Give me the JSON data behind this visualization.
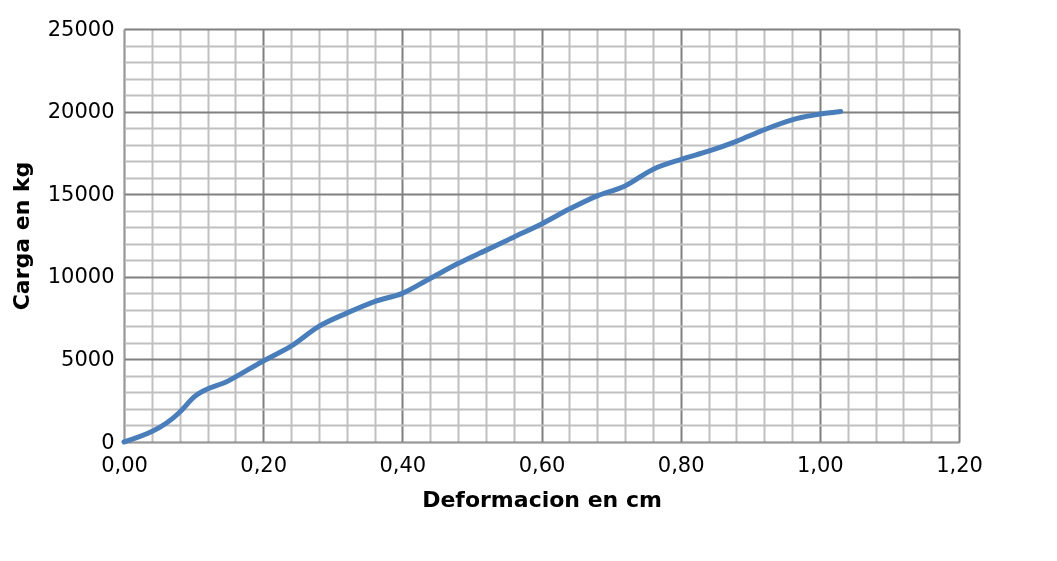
{
  "chart_data": {
    "type": "line",
    "xlabel": "Deformacion en cm",
    "ylabel": "Carga en kg",
    "x": [
      0,
      0.08,
      0.1,
      0.15,
      0.2,
      0.24,
      0.28,
      0.32,
      0.36,
      0.4,
      0.44,
      0.48,
      0.52,
      0.56,
      0.6,
      0.64,
      0.68,
      0.72,
      0.76,
      0.8,
      0.84,
      0.88,
      0.92,
      0.96,
      1.03
    ],
    "series": [
      {
        "color": "#4a7ebb",
        "values": [
          0,
          1800,
          2700,
          3700,
          4900,
          5800,
          7000,
          7800,
          8500,
          9000,
          9900,
          10800,
          11600,
          12400,
          13200,
          14100,
          14900,
          15500,
          16500,
          17100,
          17600,
          18200,
          18900,
          19500,
          20000
        ]
      }
    ],
    "xlim": [
      0,
      1.2
    ],
    "xticks": [
      {
        "value": 0,
        "label": "0,00"
      },
      {
        "value": 0.04,
        "label": null
      },
      {
        "value": 0.08,
        "label": null
      },
      {
        "value": 0.12,
        "label": null
      },
      {
        "value": 0.16,
        "label": null
      },
      {
        "value": 0.2,
        "label": "0,20"
      },
      {
        "value": 0.24,
        "label": null
      },
      {
        "value": 0.28,
        "label": null
      },
      {
        "value": 0.32,
        "label": null
      },
      {
        "value": 0.36,
        "label": null
      },
      {
        "value": 0.4,
        "label": "0,40"
      },
      {
        "value": 0.44,
        "label": null
      },
      {
        "value": 0.48,
        "label": null
      },
      {
        "value": 0.52,
        "label": null
      },
      {
        "value": 0.56,
        "label": null
      },
      {
        "value": 0.6,
        "label": "0,60"
      },
      {
        "value": 0.64,
        "label": null
      },
      {
        "value": 0.68,
        "label": null
      },
      {
        "value": 0.72,
        "label": null
      },
      {
        "value": 0.76,
        "label": null
      },
      {
        "value": 0.8,
        "label": "0,80"
      },
      {
        "value": 0.84,
        "label": null
      },
      {
        "value": 0.88,
        "label": null
      },
      {
        "value": 0.92,
        "label": null
      },
      {
        "value": 0.96,
        "label": null
      },
      {
        "value": 1.0,
        "label": "1,00"
      },
      {
        "value": 1.04,
        "label": null
      },
      {
        "value": 1.08,
        "label": null
      },
      {
        "value": 1.12,
        "label": null
      },
      {
        "value": 1.16,
        "label": null
      },
      {
        "value": 1.2,
        "label": "1,20"
      }
    ],
    "ylim": [
      0,
      25000
    ],
    "yticks": [
      0,
      {
        "value": 1000,
        "label": null
      },
      {
        "value": 2000,
        "label": null
      },
      {
        "value": 3000,
        "label": null
      },
      {
        "value": 4000,
        "label": null
      },
      5000,
      {
        "value": 6000,
        "label": null
      },
      {
        "value": 7000,
        "label": null
      },
      {
        "value": 8000,
        "label": null
      },
      {
        "value": 9000,
        "label": null
      },
      10000,
      {
        "value": 11000,
        "label": null
      },
      {
        "value": 12000,
        "label": null
      },
      {
        "value": 13000,
        "label": null
      },
      {
        "value": 14000,
        "label": null
      },
      15000,
      {
        "value": 16000,
        "label": null
      },
      {
        "value": 17000,
        "label": null
      },
      {
        "value": 18000,
        "label": null
      },
      {
        "value": 19000,
        "label": null
      },
      20000,
      {
        "value": 21000,
        "label": null
      },
      {
        "value": 22000,
        "label": null
      },
      {
        "value": 23000,
        "label": null
      },
      {
        "value": 24000,
        "label": null
      },
      25000
    ],
    "grid": true,
    "marker": "none",
    "line_style": "solid"
  }
}
